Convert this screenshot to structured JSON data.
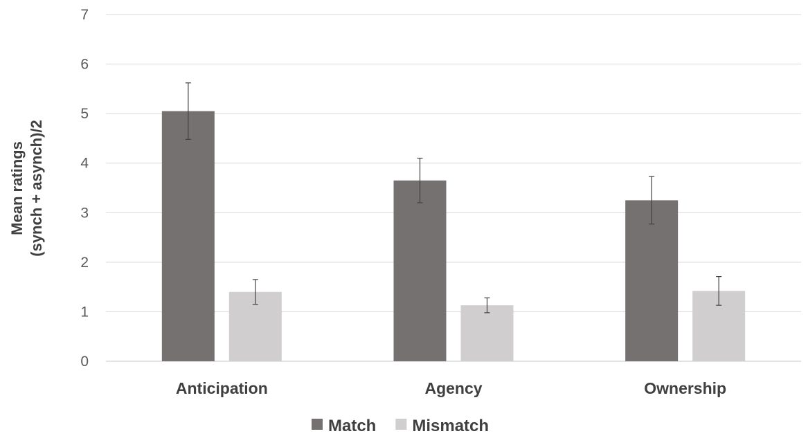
{
  "chart_data": {
    "type": "bar",
    "title": "",
    "xlabel": "",
    "ylabel": [
      "Mean ratings",
      "(synch + asynch)/2"
    ],
    "ylim": [
      0,
      7
    ],
    "yticks": [
      0,
      1,
      2,
      3,
      4,
      5,
      6,
      7
    ],
    "grid": true,
    "legend_position": "bottom",
    "categories": [
      "Anticipation",
      "Agency",
      "Ownership"
    ],
    "series": [
      {
        "name": "Match",
        "color": "#767171",
        "values": [
          5.05,
          3.65,
          3.25
        ],
        "error": [
          0.57,
          0.45,
          0.48
        ]
      },
      {
        "name": "Mismatch",
        "color": "#d0cece",
        "values": [
          1.4,
          1.13,
          1.42
        ],
        "error": [
          0.25,
          0.15,
          0.29
        ]
      }
    ]
  }
}
